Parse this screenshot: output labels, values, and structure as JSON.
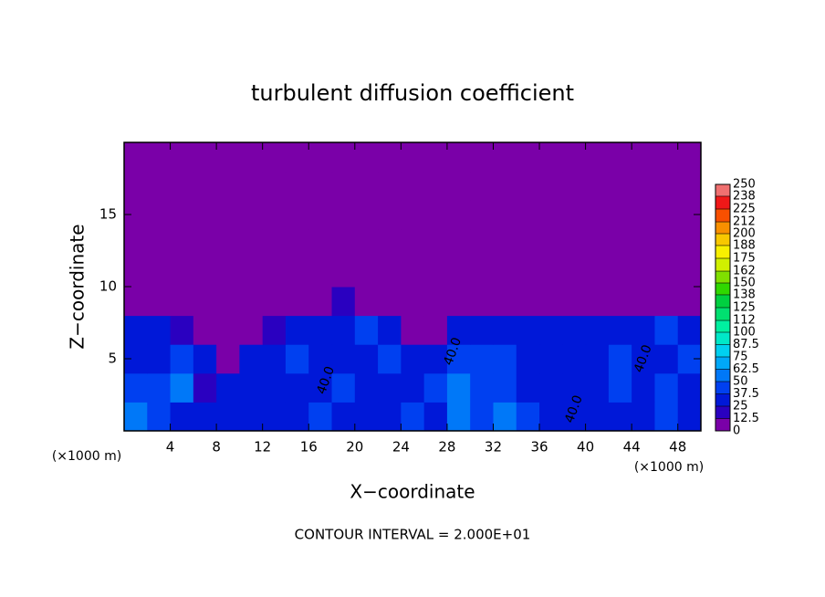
{
  "chart_data": {
    "type": "heatmap",
    "title": "turbulent diffusion coefficient",
    "xlabel": "X−coordinate",
    "ylabel": "Z−coordinate",
    "x_unit_labels": [
      "(×1000 m)",
      "(×1000 m)"
    ],
    "footer": "CONTOUR INTERVAL = 2.000E+01",
    "xlim": [
      0,
      50
    ],
    "ylim": [
      0,
      20
    ],
    "xticks": [
      4,
      8,
      12,
      16,
      20,
      24,
      28,
      32,
      36,
      40,
      44,
      48
    ],
    "yticks": [
      5,
      10,
      15
    ],
    "x_edges": [
      0,
      2,
      4,
      6,
      8,
      10,
      12,
      14,
      16,
      18,
      20,
      22,
      24,
      26,
      28,
      30,
      32,
      34,
      36,
      38,
      40,
      42,
      44,
      46,
      48,
      50
    ],
    "z_edges": [
      0,
      2,
      4,
      6,
      8,
      10,
      12,
      14,
      16,
      18,
      20
    ],
    "z": [
      [
        50,
        40,
        30,
        35,
        30,
        35,
        30,
        35,
        40,
        35,
        35,
        35,
        40,
        35,
        50,
        45,
        55,
        40,
        30,
        35,
        30,
        30,
        35,
        40,
        35
      ],
      [
        40,
        45,
        50,
        20,
        35,
        35,
        30,
        35,
        35,
        40,
        30,
        35,
        30,
        40,
        50,
        40,
        45,
        35,
        35,
        35,
        35,
        40,
        35,
        40,
        35
      ],
      [
        35,
        30,
        40,
        25,
        10,
        35,
        35,
        40,
        35,
        35,
        35,
        40,
        35,
        35,
        45,
        40,
        45,
        30,
        35,
        35,
        35,
        40,
        30,
        35,
        40
      ],
      [
        30,
        25,
        20,
        5,
        0,
        0,
        15,
        25,
        30,
        35,
        40,
        35,
        0,
        5,
        35,
        30,
        25,
        35,
        30,
        30,
        30,
        25,
        35,
        40,
        35
      ],
      [
        0,
        0,
        0,
        0,
        0,
        0,
        0,
        0,
        5,
        20,
        10,
        0,
        0,
        0,
        0,
        0,
        0,
        0,
        0,
        0,
        0,
        5,
        5,
        0,
        0
      ],
      [
        0,
        0,
        0,
        0,
        0,
        0,
        0,
        0,
        0,
        0,
        0,
        0,
        0,
        0,
        0,
        0,
        0,
        0,
        0,
        0,
        0,
        0,
        0,
        0,
        0
      ],
      [
        0,
        0,
        0,
        0,
        0,
        0,
        0,
        0,
        0,
        0,
        0,
        0,
        0,
        0,
        0,
        0,
        0,
        0,
        0,
        0,
        0,
        0,
        0,
        0,
        0
      ],
      [
        0,
        0,
        0,
        0,
        0,
        0,
        0,
        0,
        0,
        0,
        0,
        0,
        0,
        0,
        0,
        0,
        0,
        0,
        0,
        0,
        0,
        0,
        0,
        0,
        0
      ],
      [
        0,
        0,
        0,
        0,
        0,
        0,
        0,
        0,
        0,
        0,
        0,
        0,
        0,
        0,
        0,
        0,
        0,
        0,
        0,
        0,
        0,
        0,
        0,
        0,
        0
      ],
      [
        0,
        0,
        0,
        0,
        0,
        0,
        0,
        0,
        0,
        0,
        0,
        0,
        0,
        0,
        0,
        0,
        0,
        0,
        0,
        0,
        0,
        0,
        0,
        0,
        0
      ]
    ],
    "levels": [
      0,
      12.5,
      25,
      37.5,
      50,
      62.5,
      75,
      87.5,
      100,
      112,
      125,
      138,
      150,
      162,
      175,
      188,
      200,
      212,
      225,
      238,
      250
    ],
    "level_colors": [
      "#7a00a8",
      "#2a00c0",
      "#0018d8",
      "#0040f0",
      "#0078f8",
      "#00a8f8",
      "#00d0f0",
      "#00e8c8",
      "#00f0a0",
      "#00e070",
      "#00d040",
      "#30d800",
      "#80e000",
      "#d0f000",
      "#f8f000",
      "#f8c800",
      "#f89000",
      "#f85000",
      "#f01818",
      "#f07070"
    ],
    "annotations": [
      {
        "text": "40.0",
        "x": 17.5,
        "z": 3.5
      },
      {
        "text": "40.0",
        "x": 28.5,
        "z": 5.5
      },
      {
        "text": "40.0",
        "x": 39,
        "z": 1.5
      },
      {
        "text": "40.0",
        "x": 45,
        "z": 5
      }
    ]
  }
}
